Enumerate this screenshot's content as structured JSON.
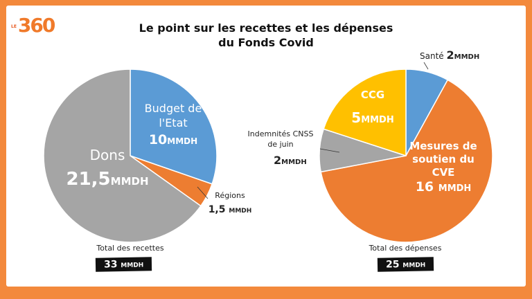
{
  "logo": {
    "prefix": "LE",
    "text": "360"
  },
  "title": [
    "Le point sur les recettes et les dépenses",
    "du Fonds Covid"
  ],
  "colors": {
    "border": "#f3893c",
    "blue": "#5b9bd5",
    "orange": "#ed7d31",
    "gray": "#a5a5a5",
    "yellow": "#ffc000"
  },
  "chart_data": [
    {
      "type": "pie",
      "unit": "MMDH",
      "total_label": "Total des recettes",
      "total_value": "33",
      "total_unit": "MMDH",
      "slices": [
        {
          "name": "Budget de l'Etat",
          "value": 10,
          "value_label": "10",
          "color": "#5b9bd5"
        },
        {
          "name": "Régions",
          "value": 1.5,
          "value_label": "1,5",
          "color": "#ed7d31"
        },
        {
          "name": "Dons",
          "value": 21.5,
          "value_label": "21,5",
          "color": "#a5a5a5"
        }
      ]
    },
    {
      "type": "pie",
      "unit": "MMDH",
      "total_label": "Total des dépenses",
      "total_value": "25",
      "total_unit": "MMDH",
      "slices": [
        {
          "name": "Santé",
          "value": 2,
          "value_label": "2",
          "color": "#5b9bd5"
        },
        {
          "name": "Mesures de soutien du CVE",
          "value": 16,
          "value_label": "16",
          "color": "#ed7d31"
        },
        {
          "name": "Indemnités CNSS de juin",
          "value": 2,
          "value_label": "2",
          "color": "#a5a5a5"
        },
        {
          "name": "CCG",
          "value": 5,
          "value_label": "5",
          "color": "#ffc000"
        }
      ]
    }
  ]
}
